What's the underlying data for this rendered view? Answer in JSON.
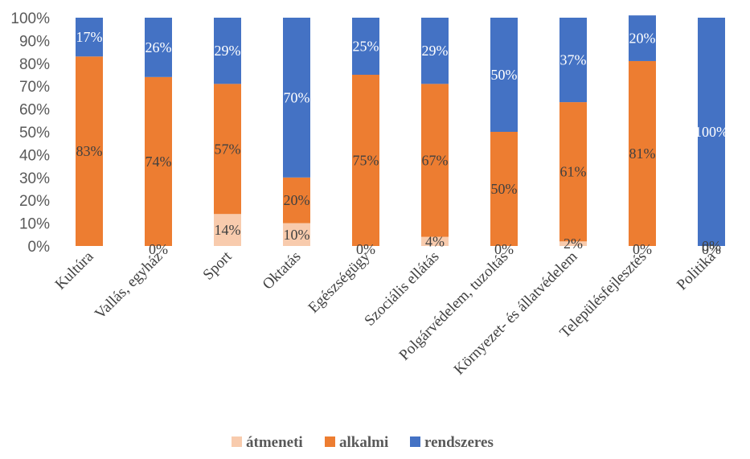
{
  "chart_data": {
    "type": "bar",
    "stacked": true,
    "percent": true,
    "categories": [
      "Kultúra",
      "Vallás, egyház",
      "Sport",
      "Oktatás",
      "Egészségügy",
      "Szociális ellátás",
      "Polgárvédelem, tuzoltás",
      "Környezet- és állatvédelem",
      "Településfejlesztés",
      "Politika"
    ],
    "series": [
      {
        "name": "átmeneti",
        "color": "#f8cbad",
        "values": [
          0,
          0,
          14,
          10,
          0,
          4,
          0,
          2,
          0,
          0
        ]
      },
      {
        "name": "alkalmi",
        "color": "#ed7d31",
        "values": [
          83,
          74,
          57,
          20,
          75,
          67,
          50,
          61,
          81,
          0
        ]
      },
      {
        "name": "rendszeres",
        "color": "#4472c4",
        "values": [
          17,
          26,
          29,
          70,
          25,
          29,
          50,
          37,
          20,
          100
        ]
      }
    ],
    "data_labels": [
      [
        "",
        "0%",
        "14%",
        "10%",
        "0%",
        "4%",
        "0%",
        "2%",
        "0%",
        "0%"
      ],
      [
        "83%",
        "74%",
        "57%",
        "20%",
        "75%",
        "67%",
        "50%",
        "61%",
        "81%",
        "0%"
      ],
      [
        "17%",
        "26%",
        "29%",
        "70%",
        "25%",
        "29%",
        "50%",
        "37%",
        "20%",
        "100%"
      ]
    ],
    "y_ticks": [
      "0%",
      "10%",
      "20%",
      "30%",
      "40%",
      "50%",
      "60%",
      "70%",
      "80%",
      "90%",
      "100%"
    ],
    "ylim": [
      0,
      100
    ],
    "legend_position": "bottom",
    "grid": false
  }
}
